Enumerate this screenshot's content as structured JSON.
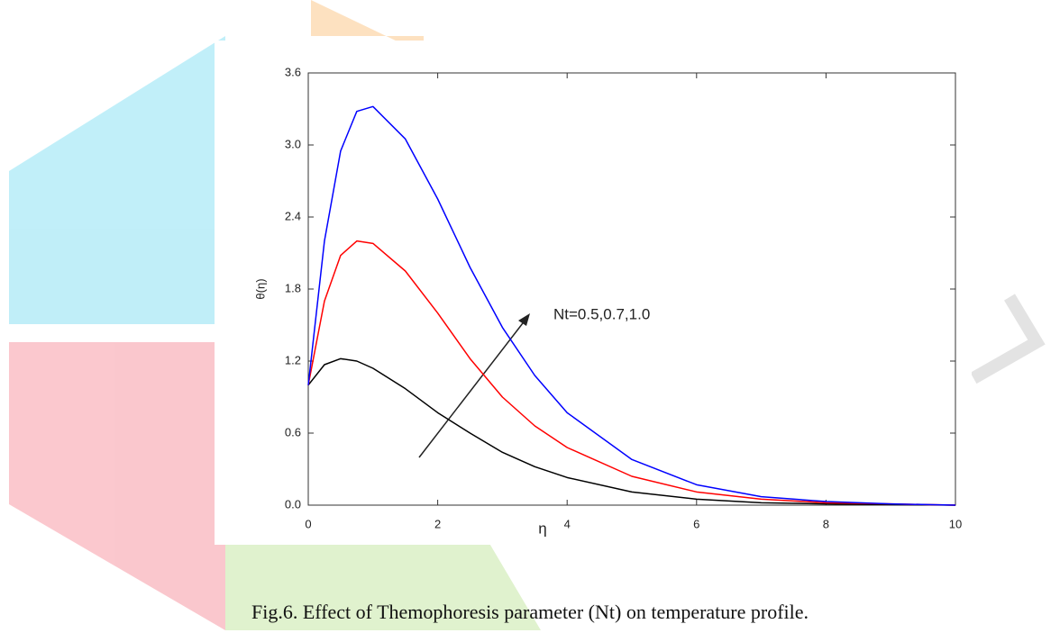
{
  "chart_data": {
    "type": "line",
    "y_label": "θ(η)",
    "x_label": "η",
    "annotation": "Nt=0.5,0.7,1.0",
    "caption": "Fig.6. Effect of Themophoresis parameter (Nt) on temperature profile.",
    "x": [
      0,
      0.25,
      0.5,
      0.75,
      1,
      1.5,
      2,
      2.5,
      3,
      3.5,
      4,
      5,
      6,
      7,
      8,
      9,
      10
    ],
    "series": [
      {
        "color": "#000000",
        "values": [
          1.0,
          1.17,
          1.22,
          1.2,
          1.14,
          0.97,
          0.77,
          0.6,
          0.44,
          0.32,
          0.23,
          0.11,
          0.05,
          0.02,
          0.01,
          0.005,
          0
        ]
      },
      {
        "color": "#ff0000",
        "values": [
          1.0,
          1.7,
          2.08,
          2.2,
          2.18,
          1.95,
          1.6,
          1.22,
          0.9,
          0.66,
          0.48,
          0.24,
          0.11,
          0.05,
          0.02,
          0.01,
          0
        ]
      },
      {
        "color": "#0000ff",
        "values": [
          1.0,
          2.2,
          2.95,
          3.28,
          3.32,
          3.05,
          2.55,
          1.98,
          1.48,
          1.08,
          0.77,
          0.38,
          0.17,
          0.07,
          0.03,
          0.01,
          0
        ]
      }
    ],
    "xlim": [
      0,
      10
    ],
    "ylim": [
      0,
      3.6
    ],
    "xticks": [
      0,
      2,
      4,
      6,
      8,
      10
    ],
    "yticks": [
      {
        "value": 0,
        "label": "0.0"
      },
      0.6,
      1.2,
      1.8,
      2.4,
      {
        "value": 3,
        "label": "3.0"
      },
      3.6
    ],
    "grid": false
  }
}
